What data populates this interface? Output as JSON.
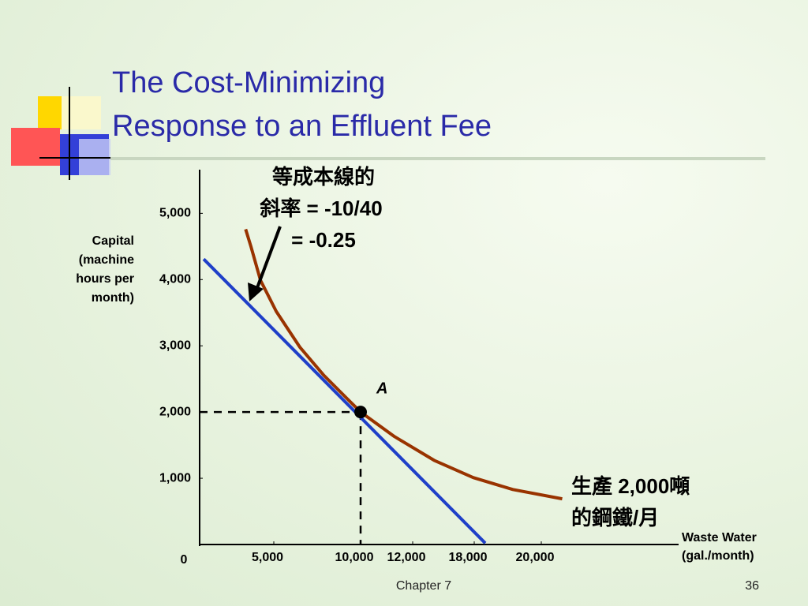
{
  "chart_data": {
    "type": "line",
    "title": [
      "The Cost-Minimizing",
      "Response to an Effluent Fee"
    ],
    "y_label": [
      "Capital",
      "(machine",
      "hours per",
      "month)"
    ],
    "x_label": [
      "Waste Water",
      "(gal./month)"
    ],
    "origin_label": "0",
    "xlim": [
      0,
      24000
    ],
    "ylim": [
      0,
      5600
    ],
    "xticks": [
      {
        "value": 5000,
        "label": "5,000"
      },
      {
        "value": 10000,
        "label": "10,000"
      },
      {
        "value": 12000,
        "label": "12,000"
      },
      {
        "value": 18000,
        "label": "18,000"
      },
      {
        "value": 20000,
        "label": "20,000"
      }
    ],
    "yticks": [
      {
        "value": 1000,
        "label": "1,000"
      },
      {
        "value": 2000,
        "label": "2,000"
      },
      {
        "value": 3000,
        "label": "3,000"
      },
      {
        "value": 4000,
        "label": "4,000"
      },
      {
        "value": 5000,
        "label": "5,000"
      }
    ],
    "series": [
      {
        "color": "#1f3fc8",
        "x": [
          270,
          18330
        ],
        "values": [
          4310,
          20
        ]
      },
      {
        "color": "#993300",
        "x": [
          3100,
          3460,
          4100,
          5140,
          6500,
          7860,
          9230,
          10000,
          11300,
          14100,
          17900,
          19150,
          20610
        ],
        "values": [
          4760,
          4500,
          3990,
          3520,
          2980,
          2560,
          2200,
          2000,
          1630,
          1270,
          1010,
          830,
          690
        ]
      }
    ],
    "point": {
      "label": "A",
      "x": 10000,
      "y": 2000
    },
    "annotations": {
      "slope": [
        "等成本線的",
        "斜率 = -10/40",
        "= -0.25"
      ],
      "output": [
        "生產 2,000噸",
        "的鋼鐵/月"
      ]
    },
    "footer": {
      "chapter": "Chapter 7",
      "page": "36"
    }
  }
}
